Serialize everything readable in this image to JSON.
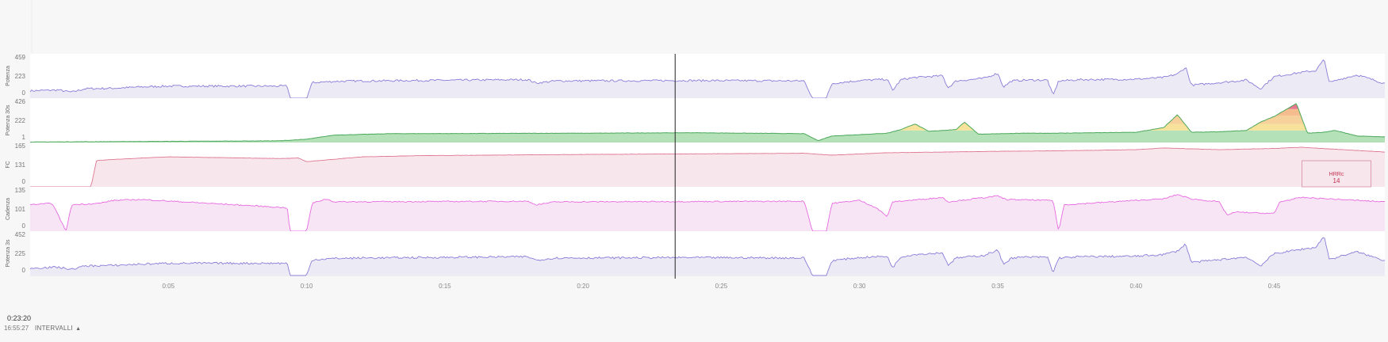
{
  "colors": {
    "power": "#8b7bd8",
    "power_fill": "#eceaf5",
    "hr": "#e07592",
    "hr_fill": "#f7e6ec",
    "cadence": "#e86ae0",
    "cadence_fill": "#f7e5f5",
    "power30_green": "#4aa85a",
    "power30_green_fill": "#a7dcaa",
    "zone_yellow": "#f5dd8a",
    "zone_orange": "#f3b07a",
    "zone_red": "#e0607a",
    "cursor": "#222222"
  },
  "readout": {
    "time": "0:23:20",
    "clock": "16:55:27"
  },
  "intervals": {
    "label": "INTERVALLI"
  },
  "hrrc_annotation": {
    "label": "HRRc",
    "value": "14",
    "x_start_min": 46.0,
    "x_end_min": 48.5
  },
  "chart_data": {
    "type": "line",
    "x_unit": "minutes",
    "x_range": [
      0,
      49
    ],
    "x_tick_labels": [
      "0:05",
      "0:10",
      "0:15",
      "0:20",
      "0:25",
      "0:30",
      "0:35",
      "0:40",
      "0:45"
    ],
    "x_tick_values": [
      5,
      10,
      15,
      20,
      25,
      30,
      35,
      40,
      45
    ],
    "cursor_x": 23.33,
    "legend": "none",
    "panels": [
      {
        "key": "power",
        "label": "Potenza",
        "ylim": [
          0,
          459
        ],
        "y_ticks": [
          "459",
          "223",
          "0"
        ],
        "avg_label": "223",
        "avg_color": "#6a5acd",
        "series": [
          {
            "points": [
              [
                0,
                85
              ],
              [
                1,
                95
              ],
              [
                1.5,
                70
              ],
              [
                2,
                110
              ],
              [
                3,
                115
              ],
              [
                4,
                130
              ],
              [
                5,
                140
              ],
              [
                9.3,
                140
              ],
              [
                9.4,
                0
              ],
              [
                10,
                0
              ],
              [
                10.2,
                180
              ],
              [
                11,
                195
              ],
              [
                12,
                200
              ],
              [
                18,
                215
              ],
              [
                18.3,
                175
              ],
              [
                19,
                200
              ],
              [
                24,
                205
              ],
              [
                28,
                200
              ],
              [
                28.3,
                0
              ],
              [
                28.8,
                0
              ],
              [
                29,
                170
              ],
              [
                30,
                205
              ],
              [
                31,
                220
              ],
              [
                31.2,
                90
              ],
              [
                31.5,
                215
              ],
              [
                32,
                240
              ],
              [
                33,
                260
              ],
              [
                33.2,
                120
              ],
              [
                33.5,
                200
              ],
              [
                34.5,
                230
              ],
              [
                35,
                290
              ],
              [
                35.2,
                130
              ],
              [
                35.5,
                200
              ],
              [
                36,
                210
              ],
              [
                36.8,
                210
              ],
              [
                37,
                30
              ],
              [
                37.2,
                200
              ],
              [
                38,
                215
              ],
              [
                40,
                220
              ],
              [
                41,
                240
              ],
              [
                41.5,
                280
              ],
              [
                41.8,
                360
              ],
              [
                42,
                150
              ],
              [
                43,
                180
              ],
              [
                44,
                210
              ],
              [
                44.5,
                110
              ],
              [
                45,
                250
              ],
              [
                46,
                300
              ],
              [
                46.5,
                320
              ],
              [
                46.8,
                450
              ],
              [
                47,
                180
              ],
              [
                47.5,
                230
              ],
              [
                48,
                270
              ],
              [
                48.5,
                220
              ],
              [
                49,
                170
              ]
            ]
          }
        ]
      },
      {
        "key": "power30",
        "label": "Potenza 30s",
        "ylim": [
          0,
          426
        ],
        "y_ticks": [
          "426",
          "222",
          "1"
        ],
        "avg_label": "222",
        "avg_color": "#6a5acd",
        "series": [
          {
            "points": [
              [
                0,
                5
              ],
              [
                2,
                8
              ],
              [
                5,
                12
              ],
              [
                9,
                18
              ],
              [
                10,
                35
              ],
              [
                11,
                80
              ],
              [
                13,
                95
              ],
              [
                20,
                100
              ],
              [
                24,
                105
              ],
              [
                28,
                95
              ],
              [
                28.5,
                20
              ],
              [
                29,
                70
              ],
              [
                31,
                100
              ],
              [
                31.5,
                140
              ],
              [
                32,
                200
              ],
              [
                32.5,
                120
              ],
              [
                33.5,
                140
              ],
              [
                33.8,
                220
              ],
              [
                34.3,
                90
              ],
              [
                36,
                100
              ],
              [
                37,
                100
              ],
              [
                40,
                110
              ],
              [
                41,
                160
              ],
              [
                41.5,
                300
              ],
              [
                42,
                110
              ],
              [
                43,
                115
              ],
              [
                44,
                130
              ],
              [
                44.5,
                220
              ],
              [
                45,
                280
              ],
              [
                45.8,
                420
              ],
              [
                46.2,
                100
              ],
              [
                46.8,
                110
              ],
              [
                47.2,
                130
              ],
              [
                48,
                70
              ],
              [
                49,
                60
              ]
            ]
          }
        ]
      },
      {
        "key": "hr",
        "label": "FC",
        "ylim": [
          0,
          165
        ],
        "y_ticks": [
          "165",
          "131",
          "0"
        ],
        "avg_label": "131",
        "avg_color": "#c03050",
        "series": [
          {
            "points": [
              [
                0,
                0
              ],
              [
                2.2,
                0
              ],
              [
                2.4,
                110
              ],
              [
                4,
                120
              ],
              [
                5,
                125
              ],
              [
                9,
                118
              ],
              [
                9.7,
                120
              ],
              [
                10,
                105
              ],
              [
                11,
                115
              ],
              [
                12,
                125
              ],
              [
                14,
                130
              ],
              [
                20,
                135
              ],
              [
                28,
                140
              ],
              [
                29,
                132
              ],
              [
                31,
                142
              ],
              [
                35,
                148
              ],
              [
                37,
                150
              ],
              [
                40,
                155
              ],
              [
                41,
                162
              ],
              [
                43,
                155
              ],
              [
                45,
                160
              ],
              [
                46,
                165
              ],
              [
                47,
                158
              ],
              [
                49,
                145
              ]
            ]
          }
        ]
      },
      {
        "key": "cadence",
        "label": "Cadenza",
        "ylim": [
          0,
          135
        ],
        "y_ticks": [
          "135",
          "101",
          "0"
        ],
        "avg_label": "101",
        "avg_color": "#c800b8",
        "series": [
          {
            "points": [
              [
                0,
                90
              ],
              [
                0.8,
                95
              ],
              [
                1.3,
                0
              ],
              [
                1.5,
                90
              ],
              [
                2.5,
                95
              ],
              [
                3,
                105
              ],
              [
                4,
                108
              ],
              [
                9.3,
                80
              ],
              [
                9.4,
                0
              ],
              [
                10,
                0
              ],
              [
                10.2,
                95
              ],
              [
                10.7,
                110
              ],
              [
                11,
                100
              ],
              [
                18,
                102
              ],
              [
                18.3,
                90
              ],
              [
                19,
                100
              ],
              [
                28,
                102
              ],
              [
                28.3,
                0
              ],
              [
                28.8,
                0
              ],
              [
                29,
                95
              ],
              [
                30,
                105
              ],
              [
                30.6,
                80
              ],
              [
                31,
                50
              ],
              [
                31.2,
                100
              ],
              [
                33,
                115
              ],
              [
                33.2,
                100
              ],
              [
                35,
                120
              ],
              [
                35.3,
                108
              ],
              [
                37,
                105
              ],
              [
                37.2,
                0
              ],
              [
                37.4,
                90
              ],
              [
                40,
                105
              ],
              [
                41,
                110
              ],
              [
                41.5,
                125
              ],
              [
                42,
                110
              ],
              [
                43,
                100
              ],
              [
                43.3,
                55
              ],
              [
                43.6,
                65
              ],
              [
                45,
                60
              ],
              [
                45.2,
                100
              ],
              [
                46,
                115
              ],
              [
                47,
                110
              ],
              [
                49,
                100
              ]
            ]
          }
        ]
      },
      {
        "key": "power3",
        "label": "Potenza 3s",
        "ylim": [
          0,
          452
        ],
        "y_ticks": [
          "452",
          "225",
          "0"
        ],
        "avg_label": "225",
        "avg_color": "#6a5acd",
        "series": [
          {
            "points": [
              [
                0,
                85
              ],
              [
                1,
                95
              ],
              [
                1.5,
                70
              ],
              [
                2,
                110
              ],
              [
                3,
                115
              ],
              [
                4,
                130
              ],
              [
                5,
                140
              ],
              [
                9.3,
                140
              ],
              [
                9.4,
                0
              ],
              [
                10,
                0
              ],
              [
                10.2,
                180
              ],
              [
                11,
                195
              ],
              [
                12,
                200
              ],
              [
                18,
                215
              ],
              [
                18.3,
                175
              ],
              [
                19,
                200
              ],
              [
                24,
                205
              ],
              [
                28,
                200
              ],
              [
                28.3,
                0
              ],
              [
                28.8,
                0
              ],
              [
                29,
                170
              ],
              [
                30,
                205
              ],
              [
                31,
                220
              ],
              [
                31.2,
                90
              ],
              [
                31.5,
                215
              ],
              [
                32,
                240
              ],
              [
                33,
                260
              ],
              [
                33.2,
                120
              ],
              [
                33.5,
                200
              ],
              [
                34.5,
                230
              ],
              [
                35,
                290
              ],
              [
                35.2,
                130
              ],
              [
                35.5,
                200
              ],
              [
                36,
                210
              ],
              [
                36.8,
                210
              ],
              [
                37,
                30
              ],
              [
                37.2,
                200
              ],
              [
                38,
                215
              ],
              [
                40,
                220
              ],
              [
                41,
                240
              ],
              [
                41.5,
                280
              ],
              [
                41.8,
                360
              ],
              [
                42,
                150
              ],
              [
                43,
                180
              ],
              [
                44,
                210
              ],
              [
                44.5,
                110
              ],
              [
                45,
                250
              ],
              [
                46,
                300
              ],
              [
                46.5,
                320
              ],
              [
                46.8,
                450
              ],
              [
                47,
                180
              ],
              [
                47.5,
                230
              ],
              [
                48,
                270
              ],
              [
                48.5,
                220
              ],
              [
                49,
                170
              ]
            ]
          }
        ]
      }
    ]
  }
}
